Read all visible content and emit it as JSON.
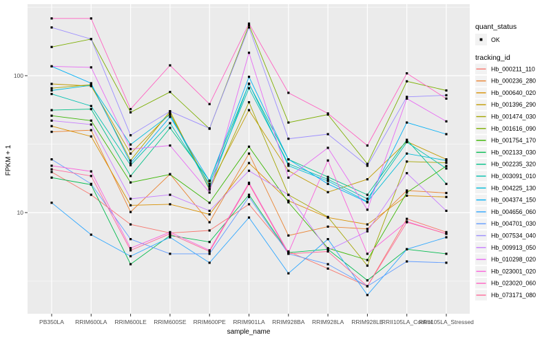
{
  "figure": {
    "background": "#FFFFFF",
    "panel_background": "#EBEBEB",
    "grid_color": "#FFFFFF",
    "tick_color": "#333333",
    "tick_label_color": "#4D4D4D",
    "text_color": "#000000",
    "legend_key_fill": "#F2F2F2",
    "marker_color": "#000000"
  },
  "chart_data": {
    "type": "line",
    "title": "",
    "xlabel": "sample_name",
    "ylabel": "FPKM + 1",
    "y_scale": "log10",
    "y_ticks": [
      100,
      10
    ],
    "y_tick_labels": [
      "100",
      "10"
    ],
    "y_minor_ticks": [
      316.2,
      31.62,
      3.162
    ],
    "ylim": [
      1.8,
      333
    ],
    "grid": true,
    "legend_position": "right",
    "categories": [
      "PB350LA",
      "RRIM600LA",
      "RRIM600LE",
      "RRIM600SE",
      "RRIM600PE",
      "RRIM901LA",
      "RRIM928BA",
      "RRIM928LA",
      "RRIM928LE",
      "RRII105LA_Control",
      "RRII105LA_Stressed"
    ],
    "legend": {
      "quant_status_title": "quant_status",
      "ok_label": "OK",
      "ok_marker": "black-square",
      "tracking_title": "tracking_id"
    },
    "series": [
      {
        "name": "Hb_000211_110",
        "color": "#F8766D",
        "values": [
          19.8,
          13.5,
          8.2,
          7.1,
          7.4,
          11.5,
          5.2,
          3.9,
          2.9,
          9.0,
          7.2
        ]
      },
      {
        "name": "Hb_000236_280",
        "color": "#EA8331",
        "values": [
          38.9,
          40,
          10.1,
          19.1,
          8.5,
          27,
          6.8,
          7.9,
          7.6,
          14.5,
          13.9
        ]
      },
      {
        "name": "Hb_000640_020",
        "color": "#D89000",
        "values": [
          42.8,
          36,
          11.3,
          11.5,
          9.7,
          23,
          12.2,
          9.2,
          8.2,
          13.3,
          13.0
        ]
      },
      {
        "name": "Hb_001396_290",
        "color": "#C09B00",
        "values": [
          87,
          84,
          27,
          53,
          15.6,
          56,
          20.2,
          14.1,
          17.5,
          33,
          24.5
        ]
      },
      {
        "name": "Hb_001474_030",
        "color": "#A3A500",
        "values": [
          81,
          86,
          24,
          55,
          14.7,
          64,
          13.5,
          9.3,
          4.1,
          23.6,
          23.1
        ]
      },
      {
        "name": "Hb_001616_090",
        "color": "#7CAE00",
        "values": [
          162,
          185,
          54,
          76,
          41,
          234,
          45.5,
          52,
          22.7,
          91,
          78
        ]
      },
      {
        "name": "Hb_001754_170",
        "color": "#39B600",
        "values": [
          51,
          47,
          16.6,
          19,
          11.8,
          30.3,
          11.9,
          5.5,
          4.5,
          14,
          21.9
        ]
      },
      {
        "name": "Hb_002133_030",
        "color": "#00BB4E",
        "values": [
          18,
          16,
          4.2,
          6.8,
          6.1,
          13.5,
          5.1,
          5.4,
          3.2,
          5.4,
          5.0
        ]
      },
      {
        "name": "Hb_002235_320",
        "color": "#00C087",
        "values": [
          56,
          57,
          18.5,
          41.5,
          17.1,
          87,
          24.5,
          18.2,
          13.5,
          34,
          16.2
        ]
      },
      {
        "name": "Hb_003091_010",
        "color": "#00C0AF",
        "values": [
          73.5,
          60,
          22.2,
          45,
          16.2,
          81,
          22.7,
          17.5,
          12.6,
          32.7,
          21
        ]
      },
      {
        "name": "Hb_004225_130",
        "color": "#00BCD8",
        "values": [
          78,
          85,
          31.4,
          52,
          15,
          87.4,
          22,
          17,
          12,
          27,
          24
        ]
      },
      {
        "name": "Hb_004374_150",
        "color": "#00B0F6",
        "values": [
          117,
          88,
          23,
          50,
          17,
          98,
          24.5,
          16.2,
          11.9,
          45.5,
          37.4
        ]
      },
      {
        "name": "Hb_004656_060",
        "color": "#2FA7FF",
        "values": [
          11.8,
          6.9,
          4.8,
          6.6,
          4.3,
          9.2,
          3.6,
          6.4,
          2.5,
          5.4,
          6.6
        ]
      },
      {
        "name": "Hb_004701_030",
        "color": "#619CFF",
        "values": [
          24.5,
          16.2,
          6.4,
          5.0,
          5.0,
          13,
          5.0,
          4.2,
          2.9,
          4.4,
          4.3
        ]
      },
      {
        "name": "Hb_007534_040",
        "color": "#9C8DFF",
        "values": [
          225,
          185,
          36.7,
          55,
          41.2,
          225,
          34.6,
          37.4,
          22,
          70,
          72
        ]
      },
      {
        "name": "Hb_009913_050",
        "color": "#C77CFF",
        "values": [
          47,
          44,
          12.6,
          13.5,
          10.3,
          20.2,
          13.5,
          5.3,
          7.3,
          19.4,
          10.3
        ]
      },
      {
        "name": "Hb_010298_020",
        "color": "#E76BF3",
        "values": [
          117,
          115,
          29.1,
          30.9,
          14,
          147,
          18,
          29.7,
          10.5,
          68,
          46.4
        ]
      },
      {
        "name": "Hb_023001_020",
        "color": "#FA62DB",
        "values": [
          22,
          20,
          5.5,
          7.2,
          5.3,
          16.5,
          5.1,
          24,
          5.0,
          8.6,
          7.0
        ]
      },
      {
        "name": "Hb_023020_060",
        "color": "#FF61C2",
        "values": [
          262,
          262,
          57,
          119,
          62,
          240,
          75,
          53,
          30.9,
          104,
          68
        ]
      },
      {
        "name": "Hb_073171_080",
        "color": "#FF6A9A",
        "values": [
          20.7,
          18.5,
          5.3,
          7.0,
          5.2,
          16.2,
          5.0,
          5.2,
          2.9,
          8.5,
          7.0
        ]
      }
    ]
  }
}
